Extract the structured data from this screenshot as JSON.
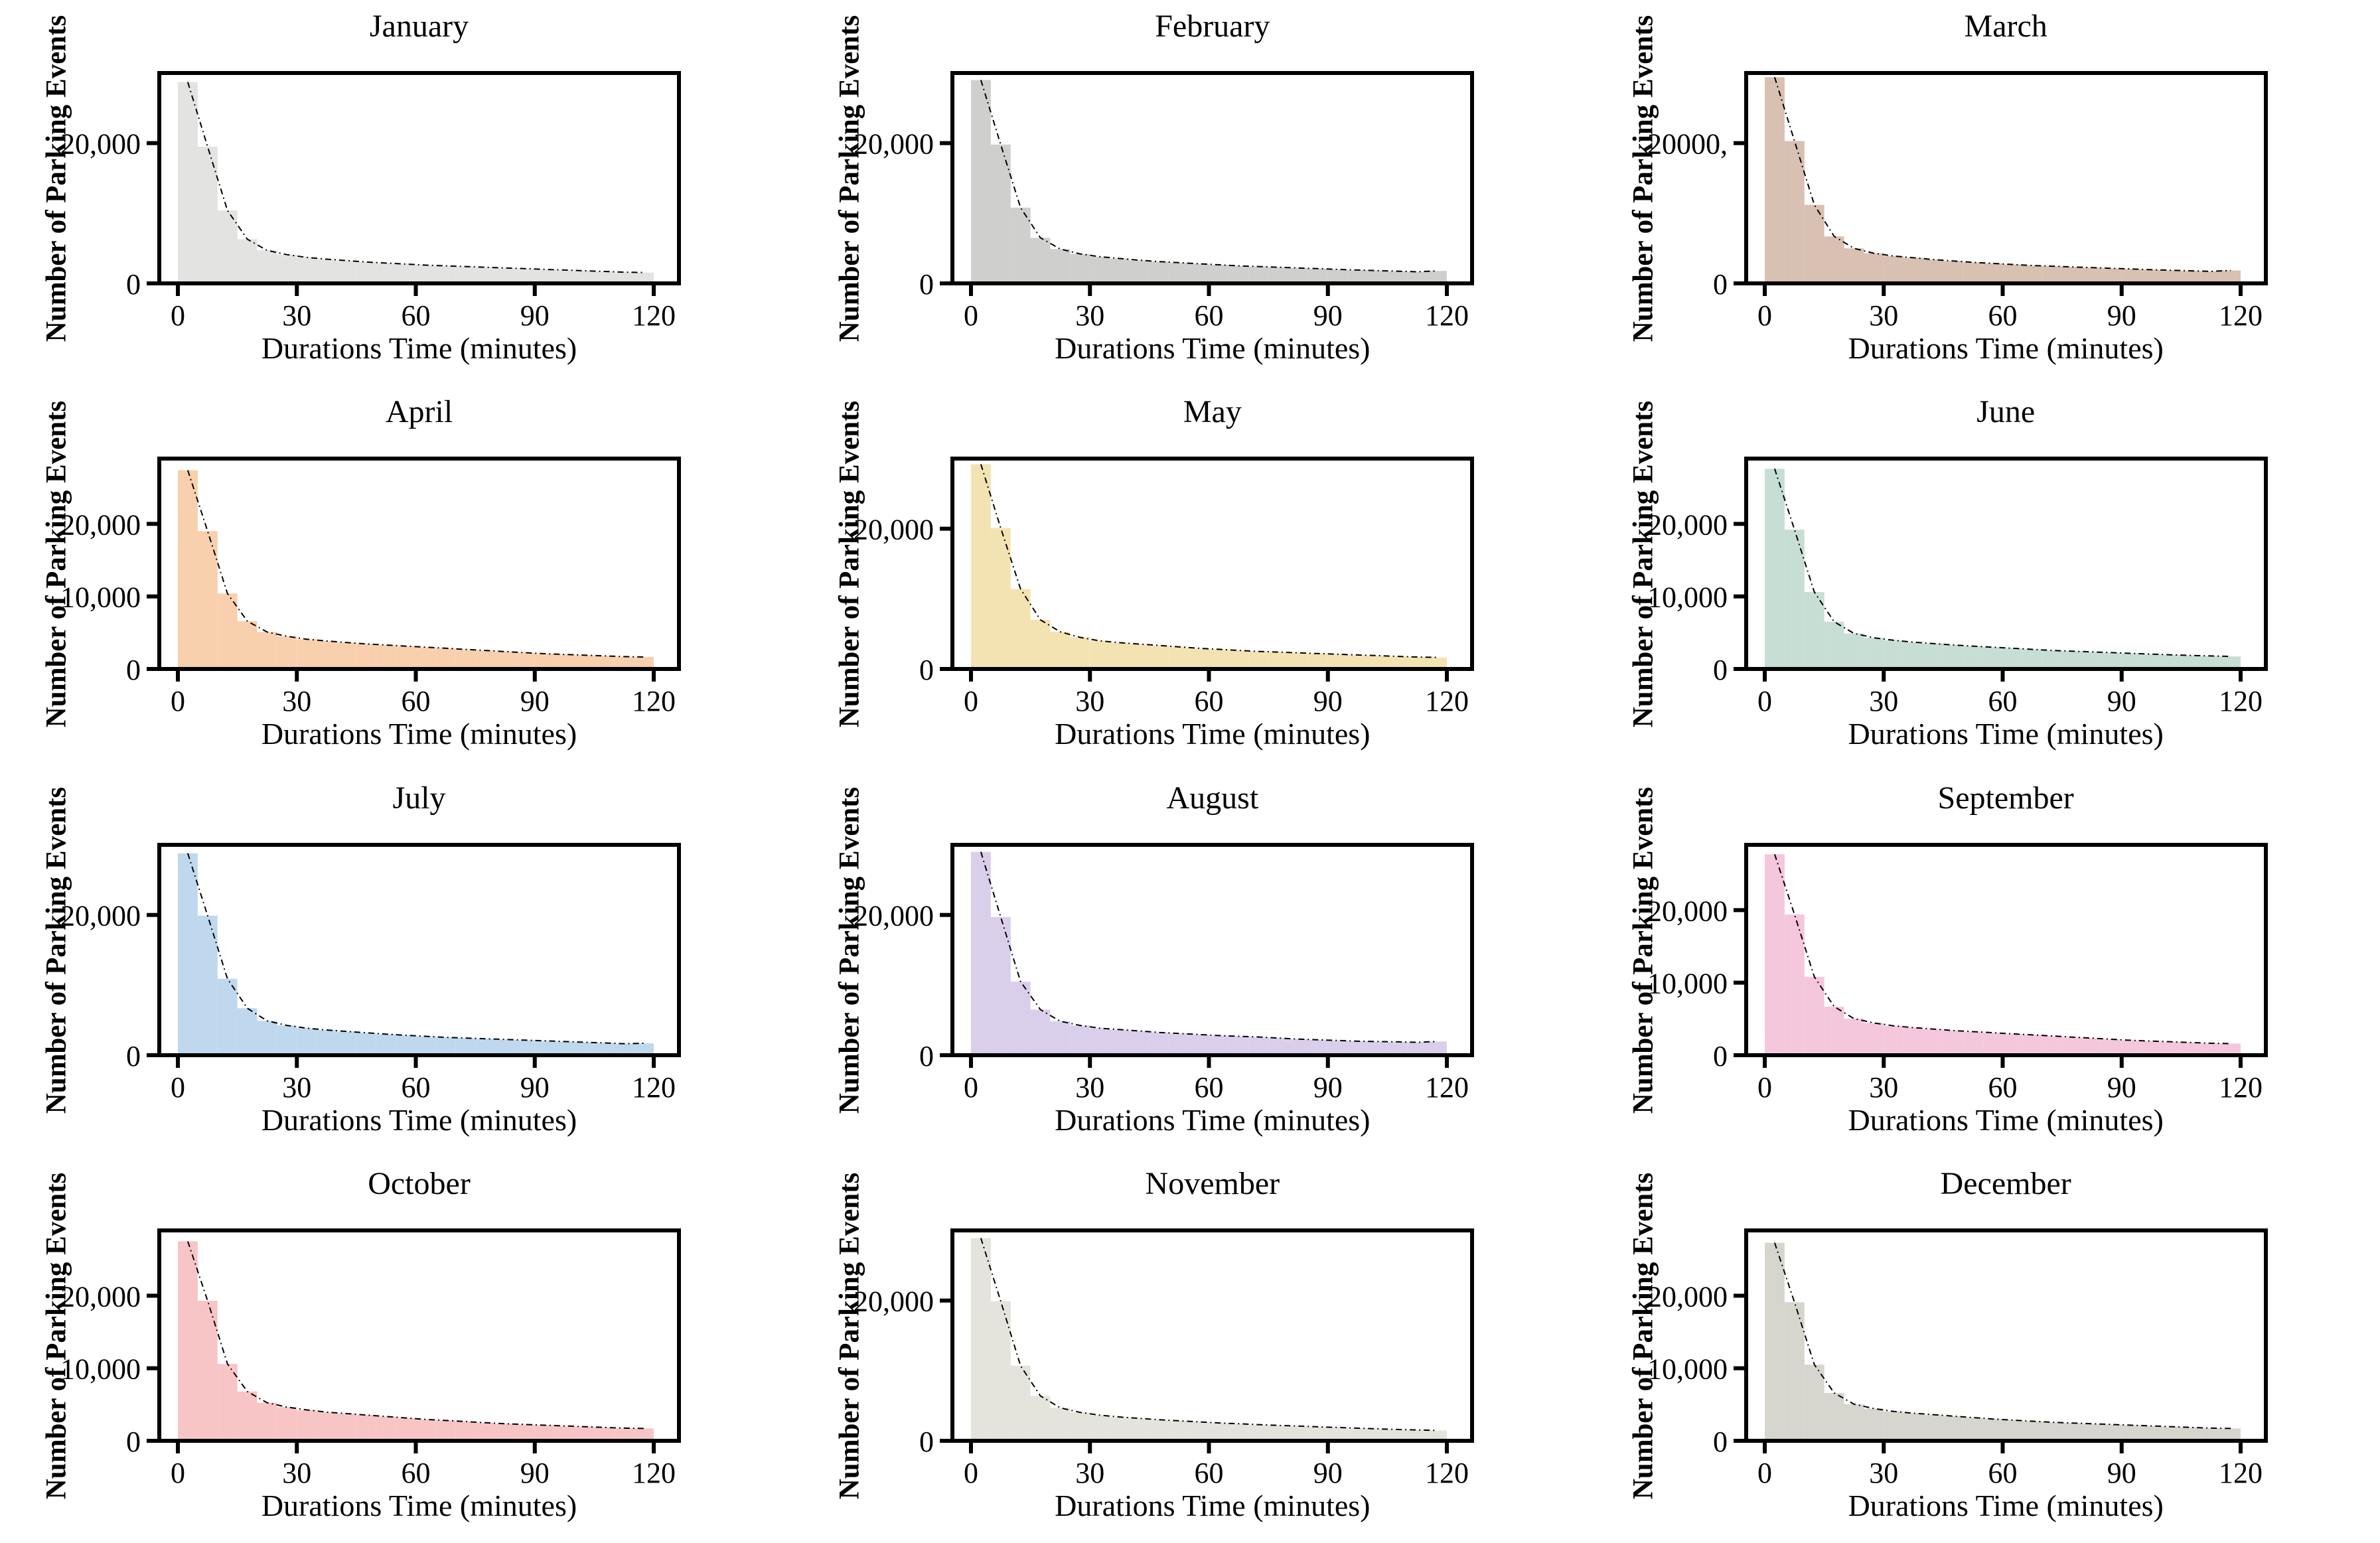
{
  "figure": {
    "rows": 4,
    "cols": 3,
    "background": "#ffffff"
  },
  "chart_data": {
    "type": "histogram-grid",
    "shared": {
      "xlabel": "Durations Time (minutes)",
      "ylabel": "Number of Parking Events",
      "x_range": [
        0,
        120
      ],
      "bin_width_minutes": 5,
      "xticks": [
        0,
        30,
        60,
        90,
        120
      ],
      "xtick_labels": [
        "0",
        "30",
        "60",
        "90",
        "120"
      ],
      "grid": "off",
      "overlay": "dash-dot density curve following bar tops",
      "curve_color": "#000000",
      "frame_color": "#000000"
    },
    "panels": [
      {
        "title": "January",
        "color": "#e3e3e1",
        "ymax": 30000,
        "yticks": [
          {
            "v": 20000,
            "label": "20,000"
          },
          {
            "v": 0,
            "label": "0"
          }
        ],
        "values": [
          28700,
          19500,
          10400,
          6300,
          4700,
          4100,
          3700,
          3450,
          3250,
          3050,
          2900,
          2750,
          2600,
          2500,
          2400,
          2300,
          2200,
          2100,
          2000,
          1900,
          1800,
          1700,
          1600,
          1550
        ]
      },
      {
        "title": "February",
        "color": "#cfcfcd",
        "ymax": 30000,
        "yticks": [
          {
            "v": 20000,
            "label": "20,000"
          },
          {
            "v": 0,
            "label": "0"
          }
        ],
        "values": [
          29000,
          19800,
          10800,
          6500,
          4900,
          4200,
          3800,
          3550,
          3300,
          3100,
          2950,
          2800,
          2650,
          2500,
          2400,
          2300,
          2200,
          2100,
          2000,
          1900,
          1820,
          1740,
          1660,
          1780
        ]
      },
      {
        "title": "March",
        "color": "#d8c0b2",
        "ymax": 30000,
        "yticks": [
          {
            "v": 20000,
            "label": "20000,"
          },
          {
            "v": 0,
            "label": "0"
          }
        ],
        "values": [
          29400,
          20300,
          11200,
          6700,
          5000,
          4300,
          3900,
          3650,
          3400,
          3200,
          3000,
          2850,
          2700,
          2550,
          2450,
          2350,
          2250,
          2150,
          2050,
          1950,
          1870,
          1790,
          1710,
          1850
        ]
      },
      {
        "title": "April",
        "color": "#f8d0ae",
        "ymax": 29000,
        "yticks": [
          {
            "v": 20000,
            "label": "20,000"
          },
          {
            "v": 10000,
            "label": "10,000"
          },
          {
            "v": 0,
            "label": "0"
          }
        ],
        "values": [
          27400,
          19000,
          10400,
          6600,
          5100,
          4500,
          4100,
          3850,
          3650,
          3450,
          3300,
          3150,
          3000,
          2850,
          2700,
          2550,
          2400,
          2250,
          2100,
          2000,
          1900,
          1800,
          1700,
          1650
        ]
      },
      {
        "title": "May",
        "color": "#f4e3b2",
        "ymax": 30000,
        "yticks": [
          {
            "v": 20000,
            "label": "20,000"
          },
          {
            "v": 0,
            "label": "0"
          }
        ],
        "values": [
          29200,
          20100,
          11400,
          7000,
          5300,
          4500,
          4000,
          3750,
          3550,
          3350,
          3150,
          2950,
          2800,
          2650,
          2500,
          2400,
          2300,
          2200,
          2100,
          2000,
          1900,
          1800,
          1700,
          1650
        ]
      },
      {
        "title": "June",
        "color": "#c7ded4",
        "ymax": 29000,
        "yticks": [
          {
            "v": 20000,
            "label": "20,000"
          },
          {
            "v": 10000,
            "label": "10,000"
          },
          {
            "v": 0,
            "label": "0"
          }
        ],
        "values": [
          27600,
          19200,
          10600,
          6500,
          4900,
          4300,
          3950,
          3700,
          3500,
          3300,
          3150,
          3000,
          2850,
          2700,
          2550,
          2450,
          2350,
          2250,
          2150,
          2050,
          1950,
          1870,
          1790,
          1730
        ]
      },
      {
        "title": "July",
        "color": "#c0d8ee",
        "ymax": 30000,
        "yticks": [
          {
            "v": 20000,
            "label": "20,000"
          },
          {
            "v": 0,
            "label": "0"
          }
        ],
        "values": [
          28800,
          19900,
          10900,
          6700,
          4900,
          4250,
          3850,
          3600,
          3400,
          3200,
          3000,
          2850,
          2700,
          2550,
          2450,
          2350,
          2250,
          2150,
          2050,
          1950,
          1850,
          1750,
          1650,
          1700
        ]
      },
      {
        "title": "August",
        "color": "#d9cfeb",
        "ymax": 30000,
        "yticks": [
          {
            "v": 20000,
            "label": "20,000"
          },
          {
            "v": 0,
            "label": "0"
          }
        ],
        "values": [
          29000,
          19700,
          10500,
          6500,
          4850,
          4250,
          3850,
          3650,
          3450,
          3250,
          3100,
          2950,
          2800,
          2700,
          2600,
          2450,
          2300,
          2200,
          2100,
          2000,
          1950,
          1900,
          1850,
          1950
        ]
      },
      {
        "title": "September",
        "color": "#f4c7dd",
        "ymax": 29000,
        "yticks": [
          {
            "v": 20000,
            "label": "20,000"
          },
          {
            "v": 10000,
            "label": "10,000"
          },
          {
            "v": 0,
            "label": "0"
          }
        ],
        "values": [
          27700,
          19400,
          10800,
          6700,
          5050,
          4450,
          4050,
          3800,
          3600,
          3400,
          3250,
          3100,
          2950,
          2800,
          2650,
          2500,
          2350,
          2200,
          2050,
          1950,
          1850,
          1750,
          1650,
          1600
        ]
      },
      {
        "title": "October",
        "color": "#f8c5c6",
        "ymax": 29000,
        "yticks": [
          {
            "v": 20000,
            "label": "20,000"
          },
          {
            "v": 10000,
            "label": "10,000"
          },
          {
            "v": 0,
            "label": "0"
          }
        ],
        "values": [
          27500,
          19300,
          10600,
          6800,
          5250,
          4650,
          4250,
          3950,
          3750,
          3550,
          3350,
          3150,
          2950,
          2800,
          2650,
          2500,
          2350,
          2250,
          2150,
          2050,
          1950,
          1850,
          1750,
          1700
        ]
      },
      {
        "title": "November",
        "color": "#e4e4dd",
        "ymax": 30000,
        "yticks": [
          {
            "v": 20000,
            "label": "20,000"
          },
          {
            "v": 0,
            "label": "0"
          }
        ],
        "values": [
          28900,
          19900,
          10700,
          6400,
          4700,
          4050,
          3650,
          3400,
          3200,
          3000,
          2850,
          2700,
          2550,
          2430,
          2310,
          2200,
          2100,
          2000,
          1900,
          1800,
          1700,
          1620,
          1540,
          1480
        ]
      },
      {
        "title": "December",
        "color": "#d6d6ce",
        "ymax": 29000,
        "yticks": [
          {
            "v": 20000,
            "label": "20,000"
          },
          {
            "v": 10000,
            "label": "10,000"
          },
          {
            "v": 0,
            "label": "0"
          }
        ],
        "values": [
          27300,
          19100,
          10500,
          6600,
          5050,
          4450,
          4050,
          3800,
          3600,
          3400,
          3200,
          3000,
          2850,
          2700,
          2550,
          2450,
          2350,
          2250,
          2150,
          2050,
          1950,
          1850,
          1750,
          1700
        ]
      }
    ]
  }
}
